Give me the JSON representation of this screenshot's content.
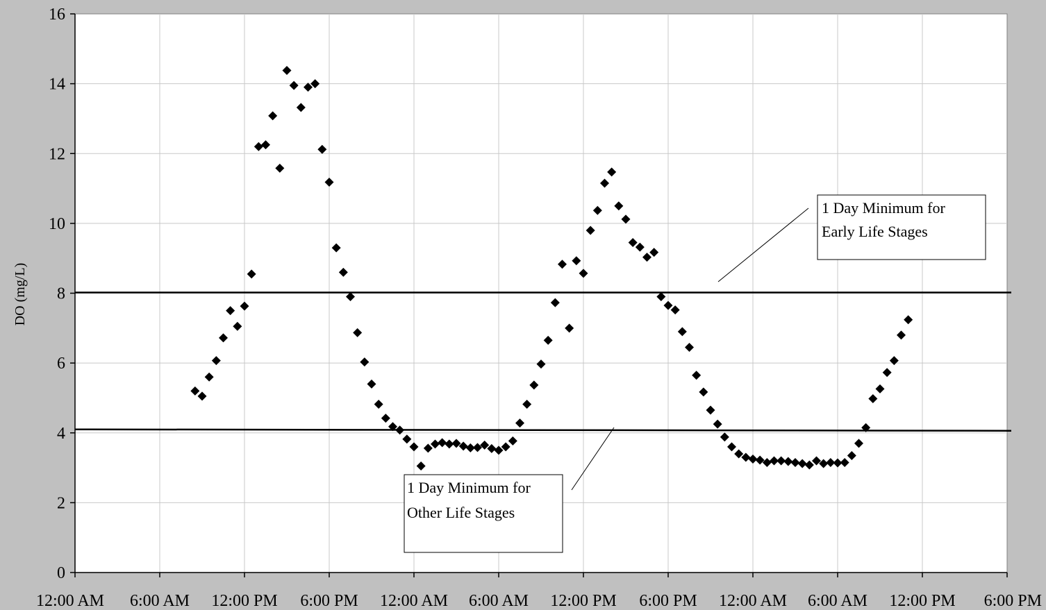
{
  "chart_data": {
    "type": "scatter",
    "title": "",
    "xlabel": "",
    "ylabel": "DO (mg/L)",
    "xlim": [
      0,
      66
    ],
    "ylim": [
      0,
      16
    ],
    "grid": true,
    "x_tick_values": [
      0,
      6,
      12,
      18,
      24,
      30,
      36,
      42,
      48,
      54,
      60,
      66
    ],
    "x_tick_labels": [
      "12:00 AM",
      "6:00 AM",
      "12:00 PM",
      "6:00 PM",
      "12:00 AM",
      "6:00 AM",
      "12:00 PM",
      "6:00 PM",
      "12:00 AM",
      "6:00 AM",
      "12:00 PM",
      "6:00 PM"
    ],
    "y_tick_values": [
      0,
      2,
      4,
      6,
      8,
      10,
      12,
      14,
      16
    ],
    "y_tick_labels": [
      "0",
      "2",
      "4",
      "6",
      "8",
      "10",
      "12",
      "14",
      "16"
    ],
    "reference_lines": [
      {
        "y_start": 8.02,
        "y_end": 8.02,
        "label_line1": "1 Day Minimum for",
        "label_line2": "Early Life Stages"
      },
      {
        "y_start": 4.1,
        "y_end": 4.06,
        "label_line1": "1 Day Minimum for",
        "label_line2": "Other Life Stages"
      }
    ],
    "series": [
      {
        "x": [
          8.5,
          9,
          9.5,
          10,
          10.5,
          11,
          11.5,
          12,
          12.5,
          13,
          13.5,
          14,
          14.5,
          15,
          15.5,
          16,
          16.5,
          17,
          17.5,
          18,
          18.5,
          19,
          19.5,
          20,
          20.5,
          21,
          21.5,
          22,
          22.5,
          23,
          23.5,
          24,
          24.5,
          25,
          25.5,
          26,
          26.5,
          27,
          27.5,
          28,
          28.5,
          29,
          29.5,
          30,
          30.5,
          31,
          31.5,
          32,
          32.5,
          33,
          33.5,
          34,
          34.5,
          35,
          35.5,
          36,
          36.5,
          37,
          37.5,
          38,
          38.5,
          39,
          39.5,
          40,
          40.5,
          41,
          41.5,
          42,
          42.5,
          43,
          43.5,
          44,
          44.5,
          45,
          45.5,
          46,
          46.5,
          47,
          47.5,
          48,
          48.5,
          49,
          49.5,
          50,
          50.5,
          51,
          51.5,
          52,
          52.5,
          53,
          53.5,
          54,
          54.5,
          55,
          55.5,
          56,
          56.5,
          57,
          57.5,
          58,
          58.5,
          59
        ],
        "y": [
          5.2,
          5.05,
          5.6,
          6.07,
          6.72,
          7.5,
          7.05,
          7.63,
          8.55,
          12.2,
          12.25,
          13.08,
          11.58,
          14.38,
          13.95,
          13.32,
          13.9,
          14.0,
          12.12,
          11.18,
          9.3,
          8.6,
          7.9,
          6.87,
          6.03,
          5.4,
          4.82,
          4.42,
          4.18,
          4.08,
          3.82,
          3.6,
          3.05,
          3.56,
          3.68,
          3.72,
          3.68,
          3.7,
          3.62,
          3.57,
          3.58,
          3.65,
          3.55,
          3.5,
          3.6,
          3.77,
          4.28,
          4.82,
          5.37,
          5.97,
          6.65,
          7.73,
          8.83,
          7.0,
          8.93,
          8.57,
          9.8,
          10.37,
          11.15,
          11.47,
          10.5,
          10.12,
          9.45,
          9.32,
          9.03,
          9.17,
          7.9,
          7.65,
          7.52,
          6.9,
          6.45,
          5.65,
          5.17,
          4.65,
          4.25,
          3.88,
          3.6,
          3.4,
          3.3,
          3.25,
          3.22,
          3.15,
          3.2,
          3.2,
          3.18,
          3.15,
          3.12,
          3.08,
          3.2,
          3.12,
          3.15,
          3.14,
          3.15,
          3.35,
          3.7,
          4.15,
          4.98,
          5.26,
          5.73,
          6.07,
          6.8,
          7.24
        ]
      }
    ]
  }
}
